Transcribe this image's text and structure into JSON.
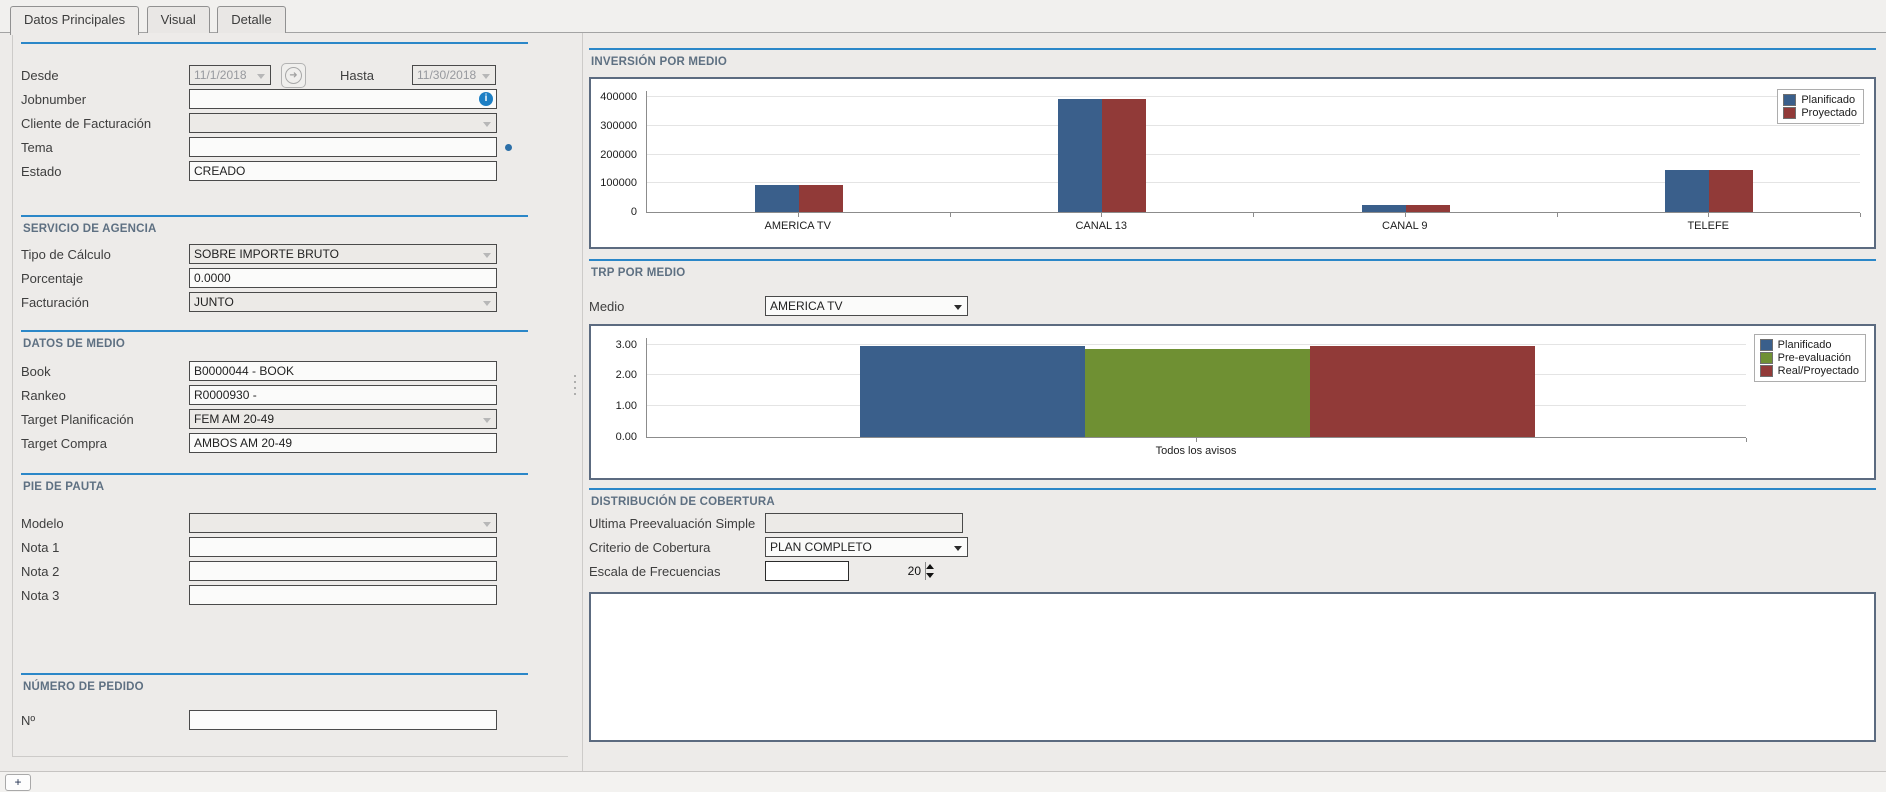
{
  "window": {
    "tabs": [
      {
        "label": "Datos Principales",
        "active": true
      },
      {
        "label": "Visual",
        "active": false
      },
      {
        "label": "Detalle",
        "active": false
      }
    ]
  },
  "icons": {
    "info": "i",
    "forward_arrow": "➜",
    "add_tab": "+"
  },
  "colors": {
    "accent_rule": "#2b87c8",
    "section_title": "#5e7082",
    "chart_border": "#5c6b80",
    "info_icon": "#1d7fc4",
    "planificado_blue": "#3a5f8b",
    "proyectado_red": "#913a38",
    "preevaluacion_green": "#6f9033"
  },
  "left": {
    "general": {
      "desde_label": "Desde",
      "desde_value": "11/1/2018",
      "hasta_label": "Hasta",
      "hasta_value": "11/30/2018",
      "jobnumber_label": "Jobnumber",
      "jobnumber_value": "",
      "cliente_label": "Cliente de Facturación",
      "cliente_value": "",
      "tema_label": "Tema",
      "tema_value": "",
      "estado_label": "Estado",
      "estado_value": "CREADO"
    },
    "servicio": {
      "title": "SERVICIO DE AGENCIA",
      "tipo_label": "Tipo de Cálculo",
      "tipo_value": "SOBRE IMPORTE BRUTO",
      "porcentaje_label": "Porcentaje",
      "porcentaje_value": "0.0000",
      "facturacion_label": "Facturación",
      "facturacion_value": "JUNTO"
    },
    "datos_medio": {
      "title": "DATOS DE MEDIO",
      "book_label": "Book",
      "book_value": "B0000044 - BOOK",
      "rankeo_label": "Rankeo",
      "rankeo_value": "R0000930 -",
      "target_plan_label": "Target Planificación",
      "target_plan_value": "FEM AM 20-49",
      "target_compra_label": "Target Compra",
      "target_compra_value": "AMBOS AM 20-49"
    },
    "pie_pauta": {
      "title": "PIE DE PAUTA",
      "modelo_label": "Modelo",
      "modelo_value": "",
      "nota1_label": "Nota 1",
      "nota1_value": "",
      "nota2_label": "Nota 2",
      "nota2_value": "",
      "nota3_label": "Nota 3",
      "nota3_value": ""
    },
    "numero_pedido": {
      "title": "NÚMERO DE PEDIDO",
      "numero_label": "Nº",
      "numero_value": ""
    }
  },
  "right": {
    "medio_label": "Medio",
    "medio_value": "AMERICA TV",
    "cobertura": {
      "title": "DISTRIBUCIÓN DE COBERTURA",
      "ultima_label": "Ultima Preevaluación Simple",
      "ultima_value": "",
      "criterio_label": "Criterio de Cobertura",
      "criterio_value": "PLAN COMPLETO",
      "escala_label": "Escala de Frecuencias",
      "escala_value": "20"
    }
  },
  "footer": {
    "add_button_label": "+"
  },
  "chart_data": [
    {
      "type": "bar",
      "title": "INVERSIÓN POR MEDIO",
      "categories": [
        "AMERICA TV",
        "CANAL 13",
        "CANAL 9",
        "TELEFE"
      ],
      "series": [
        {
          "name": "Planificado",
          "color": "#3a5f8b",
          "values": [
            95000,
            395000,
            25000,
            145000
          ]
        },
        {
          "name": "Proyectado",
          "color": "#913a38",
          "values": [
            95000,
            395000,
            25000,
            145000
          ]
        }
      ],
      "xlabel": "",
      "ylabel": "",
      "ylim": [
        0,
        425000
      ],
      "yticks": [
        0,
        100000,
        200000,
        300000,
        400000
      ],
      "ytick_labels": [
        "0",
        "100000",
        "200000",
        "300000",
        "400000"
      ],
      "grid": true,
      "legend_position": "top-right-inside"
    },
    {
      "type": "bar",
      "title": "TRP POR MEDIO",
      "categories": [
        "Todos los avisos"
      ],
      "series": [
        {
          "name": "Planificado",
          "color": "#3a5f8b",
          "values": [
            2.97
          ]
        },
        {
          "name": "Pre-evaluación",
          "color": "#6f9033",
          "values": [
            2.85
          ]
        },
        {
          "name": "Real/Proyectado",
          "color": "#913a38",
          "values": [
            2.97
          ]
        }
      ],
      "xlabel": "",
      "ylabel": "",
      "ylim": [
        0,
        3.25
      ],
      "yticks": [
        0,
        1,
        2,
        3
      ],
      "ytick_labels": [
        "0.00",
        "1.00",
        "2.00",
        "3.00"
      ],
      "grid": true,
      "legend_position": "right"
    }
  ]
}
